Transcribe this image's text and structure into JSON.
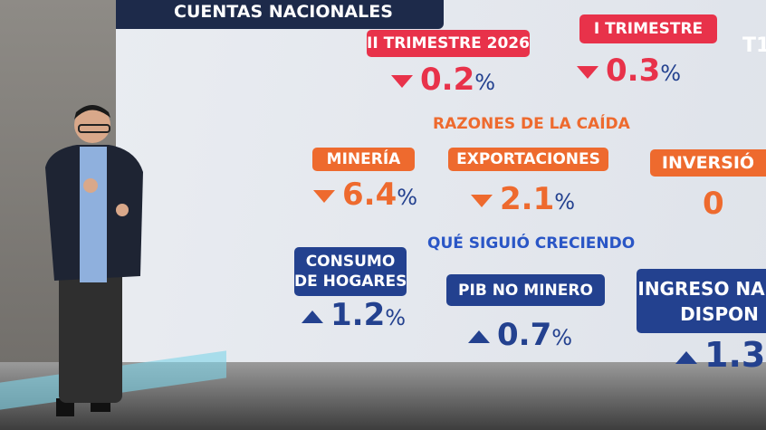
{
  "header": {
    "title": "CUENTAS NACIONALES",
    "logo": "T1"
  },
  "quarters": [
    {
      "label": "II TRIMESTRE 2026",
      "value": "0.2",
      "unit": "%"
    },
    {
      "label": "I TRIMESTRE",
      "value": "0.3",
      "unit": "%"
    }
  ],
  "reasons": {
    "title": "RAZONES DE LA CAÍDA",
    "items": [
      {
        "label": "MINERÍA",
        "value": "6.4",
        "unit": "%"
      },
      {
        "label": "EXPORTACIONES",
        "value": "2.1",
        "unit": "%"
      },
      {
        "label": "INVERSIÓ",
        "value": "0"
      }
    ]
  },
  "growth": {
    "title": "QUÉ SIGUIÓ CRECIENDO",
    "items": [
      {
        "label": [
          "CONSUMO",
          "DE HOGARES"
        ],
        "value": "1.2",
        "unit": "%"
      },
      {
        "label": [
          "PIB NO MINERO"
        ],
        "value": "0.7",
        "unit": "%"
      },
      {
        "label": [
          "INGRESO NA",
          "DISPON"
        ],
        "value": "1.3"
      }
    ]
  }
}
